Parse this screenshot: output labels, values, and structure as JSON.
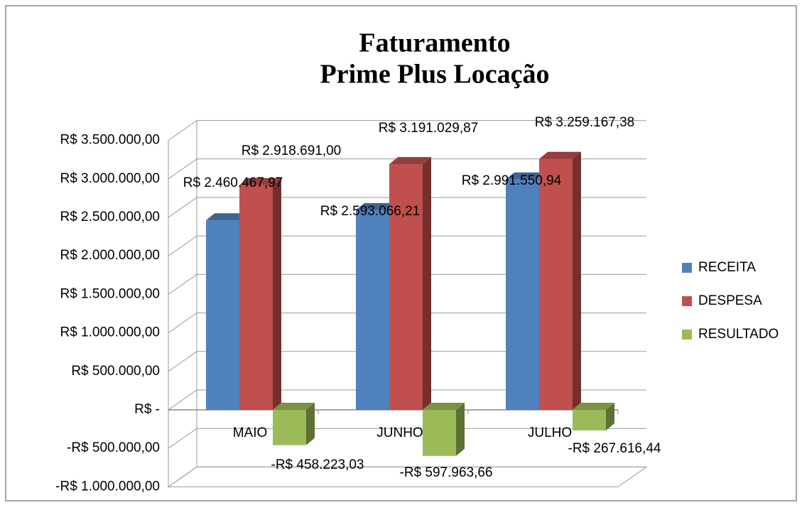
{
  "chart_data": {
    "type": "bar3d",
    "title_lines": [
      "Faturamento",
      "Prime Plus Locação"
    ],
    "categories": [
      "MAIO",
      "JUNHO",
      "JULHO"
    ],
    "series": [
      {
        "name": "RECEITA",
        "color": "#4f81bd",
        "values": [
          2460467.97,
          2593066.21,
          2991550.94
        ],
        "value_labels": [
          "R$ 2.460.467,97",
          "R$ 2.593.066,21",
          "R$ 2.991.550,94"
        ]
      },
      {
        "name": "DESPESA",
        "color": "#c0504d",
        "values": [
          2918691.0,
          3191029.87,
          3259167.38
        ],
        "value_labels": [
          "R$ 2.918.691,00",
          "R$ 3.191.029,87",
          "R$ 3.259.167,38"
        ]
      },
      {
        "name": "RESULTADO",
        "color": "#9bbb59",
        "values": [
          -458223.03,
          -597963.66,
          -267616.44
        ],
        "value_labels": [
          "-R$ 458.223,03",
          "-R$ 597.963,66",
          "-R$ 267.616,44"
        ]
      }
    ],
    "ylim": [
      -1000000,
      3500000
    ],
    "yticks": [
      {
        "value": -1000000,
        "label": "-R$ 1.000.000,00"
      },
      {
        "value": -500000,
        "label": "-R$ 500.000,00"
      },
      {
        "value": 0,
        "label": "R$ -"
      },
      {
        "value": 500000,
        "label": "R$ 500.000,00"
      },
      {
        "value": 1000000,
        "label": "R$ 1.000.000,00"
      },
      {
        "value": 1500000,
        "label": "R$ 1.500.000,00"
      },
      {
        "value": 2000000,
        "label": "R$ 2.000.000,00"
      },
      {
        "value": 2500000,
        "label": "R$ 2.500.000,00"
      },
      {
        "value": 3000000,
        "label": "R$ 3.000.000,00"
      },
      {
        "value": 3500000,
        "label": "R$ 3.500.000,00"
      }
    ],
    "grid": true,
    "legend": "right"
  }
}
